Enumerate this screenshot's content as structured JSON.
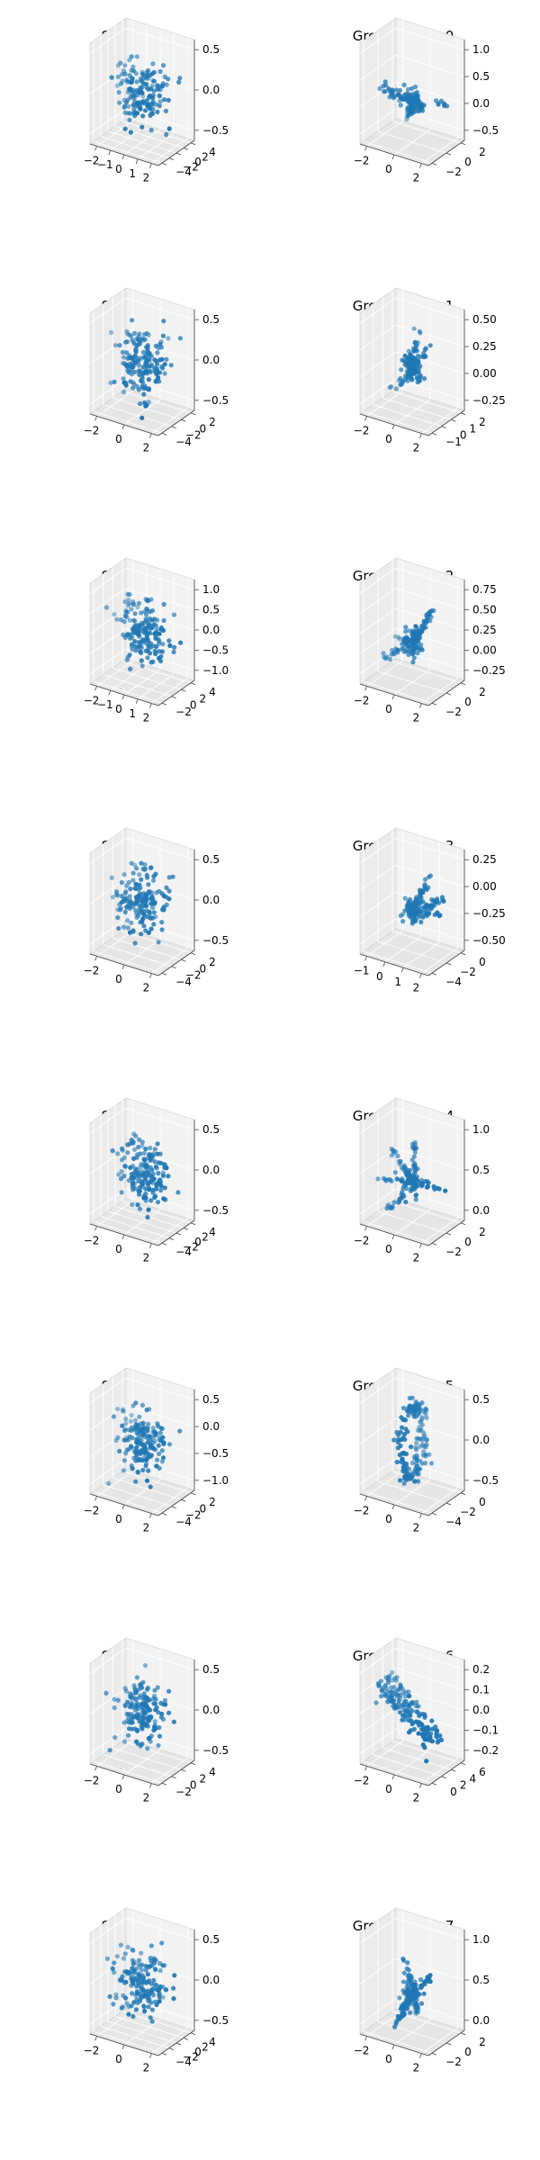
{
  "chart_data": [
    {
      "type": "scatter3d",
      "title": "Sample:0",
      "shape": "blob",
      "seed": 11,
      "n": 170,
      "x_ticks": [
        "−2",
        "−1",
        "0",
        "1",
        "2"
      ],
      "y_ticks": [
        "−4",
        "−2",
        "0",
        "2",
        "4"
      ],
      "z_ticks": [
        "−0.5",
        "0.0",
        "0.5"
      ],
      "xlim": [
        -2.5,
        2.5
      ],
      "ylim": [
        -4.5,
        4.5
      ],
      "zlim": [
        -0.8,
        0.8
      ],
      "color": "#1f77b4"
    },
    {
      "type": "scatter3d",
      "title": "Ground Truth:0",
      "shape": "star",
      "seed": 12,
      "n": 160,
      "x_ticks": [
        "−2",
        "0",
        "2"
      ],
      "y_ticks": [
        "−2",
        "0",
        "2"
      ],
      "z_ticks": [
        "−0.5",
        "0.0",
        "0.5",
        "1.0"
      ],
      "xlim": [
        -3,
        3
      ],
      "ylim": [
        -3,
        3
      ],
      "zlim": [
        -0.7,
        1.1
      ],
      "color": "#1f77b4"
    },
    {
      "type": "scatter3d",
      "title": "Sample:1",
      "shape": "blob",
      "seed": 21,
      "n": 170,
      "x_ticks": [
        "−2",
        "0",
        "2"
      ],
      "y_ticks": [
        "−4",
        "−2",
        "0",
        "2"
      ],
      "z_ticks": [
        "−0.5",
        "0.0",
        "0.5"
      ],
      "xlim": [
        -3,
        3
      ],
      "ylim": [
        -4.5,
        3
      ],
      "zlim": [
        -0.8,
        0.8
      ],
      "color": "#1f77b4"
    },
    {
      "type": "scatter3d",
      "title": "Ground Truth:1",
      "shape": "star",
      "seed": 22,
      "n": 160,
      "x_ticks": [
        "−2",
        "0",
        "2"
      ],
      "y_ticks": [
        "−1",
        "0",
        "1",
        "2"
      ],
      "z_ticks": [
        "−0.25",
        "0.00",
        "0.25",
        "0.50"
      ],
      "xlim": [
        -3,
        3
      ],
      "ylim": [
        -1.5,
        2.5
      ],
      "zlim": [
        -0.4,
        0.6
      ],
      "color": "#1f77b4"
    },
    {
      "type": "scatter3d",
      "title": "Sample:2",
      "shape": "blob",
      "seed": 31,
      "n": 170,
      "x_ticks": [
        "−2",
        "−1",
        "0",
        "1",
        "2"
      ],
      "y_ticks": [
        "−2",
        "0",
        "2",
        "4"
      ],
      "z_ticks": [
        "−1.0",
        "−0.5",
        "0.0",
        "0.5",
        "1.0"
      ],
      "xlim": [
        -2.5,
        2.5
      ],
      "ylim": [
        -3,
        4.5
      ],
      "zlim": [
        -1.1,
        1.1
      ],
      "color": "#1f77b4"
    },
    {
      "type": "scatter3d",
      "title": "Ground Truth:2",
      "shape": "star",
      "seed": 32,
      "n": 160,
      "x_ticks": [
        "−2",
        "0",
        "2"
      ],
      "y_ticks": [
        "−2",
        "0",
        "2"
      ],
      "z_ticks": [
        "−0.25",
        "0.00",
        "0.25",
        "0.50",
        "0.75"
      ],
      "xlim": [
        -3,
        3
      ],
      "ylim": [
        -3,
        3
      ],
      "zlim": [
        -0.4,
        0.8
      ],
      "color": "#1f77b4"
    },
    {
      "type": "scatter3d",
      "title": "Sample:3",
      "shape": "blob",
      "seed": 41,
      "n": 170,
      "x_ticks": [
        "−2",
        "0",
        "2"
      ],
      "y_ticks": [
        "−4",
        "−2",
        "0",
        "2"
      ],
      "z_ticks": [
        "−0.5",
        "0.0",
        "0.5"
      ],
      "xlim": [
        -3,
        3
      ],
      "ylim": [
        -4.5,
        3
      ],
      "zlim": [
        -0.8,
        0.8
      ],
      "color": "#1f77b4"
    },
    {
      "type": "scatter3d",
      "title": "Ground Truth:3",
      "shape": "star",
      "seed": 42,
      "n": 160,
      "x_ticks": [
        "−1",
        "0",
        "1",
        "2"
      ],
      "y_ticks": [
        "−4",
        "−2",
        "0"
      ],
      "z_ticks": [
        "−0.50",
        "−0.25",
        "0.00",
        "0.25"
      ],
      "xlim": [
        -1.5,
        2.5
      ],
      "ylim": [
        -4.5,
        1
      ],
      "zlim": [
        -0.6,
        0.45
      ],
      "color": "#1f77b4"
    },
    {
      "type": "scatter3d",
      "title": "Sample:4",
      "shape": "blob",
      "seed": 51,
      "n": 170,
      "x_ticks": [
        "−2",
        "0",
        "2"
      ],
      "y_ticks": [
        "−4",
        "−2",
        "0",
        "2",
        "4"
      ],
      "z_ticks": [
        "−0.5",
        "0.0",
        "0.5"
      ],
      "xlim": [
        -3,
        3
      ],
      "ylim": [
        -4.5,
        4.5
      ],
      "zlim": [
        -0.8,
        0.8
      ],
      "color": "#1f77b4"
    },
    {
      "type": "scatter3d",
      "title": "Ground Truth:4",
      "shape": "star",
      "seed": 52,
      "n": 160,
      "x_ticks": [
        "−2",
        "0",
        "2"
      ],
      "y_ticks": [
        "−2",
        "0",
        "2"
      ],
      "z_ticks": [
        "0.0",
        "0.5",
        "1.0"
      ],
      "xlim": [
        -3,
        3
      ],
      "ylim": [
        -3,
        3
      ],
      "zlim": [
        -0.3,
        1.4
      ],
      "color": "#1f77b4"
    },
    {
      "type": "scatter3d",
      "title": "Sample:5",
      "shape": "blob",
      "seed": 61,
      "n": 170,
      "x_ticks": [
        "−2",
        "0",
        "2"
      ],
      "y_ticks": [
        "−4",
        "−2",
        "0",
        "2"
      ],
      "z_ticks": [
        "−1.0",
        "−0.5",
        "0.0",
        "0.5"
      ],
      "xlim": [
        -3,
        3
      ],
      "ylim": [
        -4.5,
        3
      ],
      "zlim": [
        -1.1,
        0.8
      ],
      "color": "#1f77b4"
    },
    {
      "type": "scatter3d",
      "title": "Ground Truth:5",
      "shape": "ring",
      "seed": 62,
      "n": 160,
      "x_ticks": [
        "−2",
        "0",
        "2"
      ],
      "y_ticks": [
        "−4",
        "−2",
        "0"
      ],
      "z_ticks": [
        "−0.5",
        "0.0",
        "0.5"
      ],
      "xlim": [
        -3,
        3
      ],
      "ylim": [
        -4.5,
        1
      ],
      "zlim": [
        -0.8,
        0.8
      ],
      "color": "#1f77b4"
    },
    {
      "type": "scatter3d",
      "title": "Sample:6",
      "shape": "blob",
      "seed": 71,
      "n": 170,
      "x_ticks": [
        "−2",
        "0",
        "2"
      ],
      "y_ticks": [
        "−2",
        "0",
        "2",
        "4"
      ],
      "z_ticks": [
        "−0.5",
        "0.0",
        "0.5"
      ],
      "xlim": [
        -3,
        3
      ],
      "ylim": [
        -3,
        4.5
      ],
      "zlim": [
        -0.8,
        0.8
      ],
      "color": "#1f77b4"
    },
    {
      "type": "scatter3d",
      "title": "Ground Truth:6",
      "shape": "sheet",
      "seed": 72,
      "n": 160,
      "x_ticks": [
        "−2",
        "0",
        "2"
      ],
      "y_ticks": [
        "0",
        "2",
        "4",
        "6"
      ],
      "z_ticks": [
        "−0.2",
        "−0.1",
        "0.0",
        "0.1",
        "0.2"
      ],
      "xlim": [
        -3,
        3
      ],
      "ylim": [
        -0.5,
        6.5
      ],
      "zlim": [
        -0.25,
        0.25
      ],
      "color": "#1f77b4"
    },
    {
      "type": "scatter3d",
      "title": "Sample:7",
      "shape": "blob",
      "seed": 81,
      "n": 170,
      "x_ticks": [
        "−2",
        "0",
        "2"
      ],
      "y_ticks": [
        "−4",
        "−2",
        "0",
        "2",
        "4"
      ],
      "z_ticks": [
        "−0.5",
        "0.0",
        "0.5"
      ],
      "xlim": [
        -3,
        3
      ],
      "ylim": [
        -4.5,
        4.5
      ],
      "zlim": [
        -0.8,
        0.8
      ],
      "color": "#1f77b4"
    },
    {
      "type": "scatter3d",
      "title": "Ground Truth:7",
      "shape": "star",
      "seed": 82,
      "n": 160,
      "x_ticks": [
        "−2",
        "0",
        "2"
      ],
      "y_ticks": [
        "−2",
        "0",
        "2"
      ],
      "z_ticks": [
        "0.0",
        "0.5",
        "1.0"
      ],
      "xlim": [
        -3,
        3
      ],
      "ylim": [
        -3,
        3
      ],
      "zlim": [
        -0.3,
        1.4
      ],
      "color": "#1f77b4"
    }
  ]
}
